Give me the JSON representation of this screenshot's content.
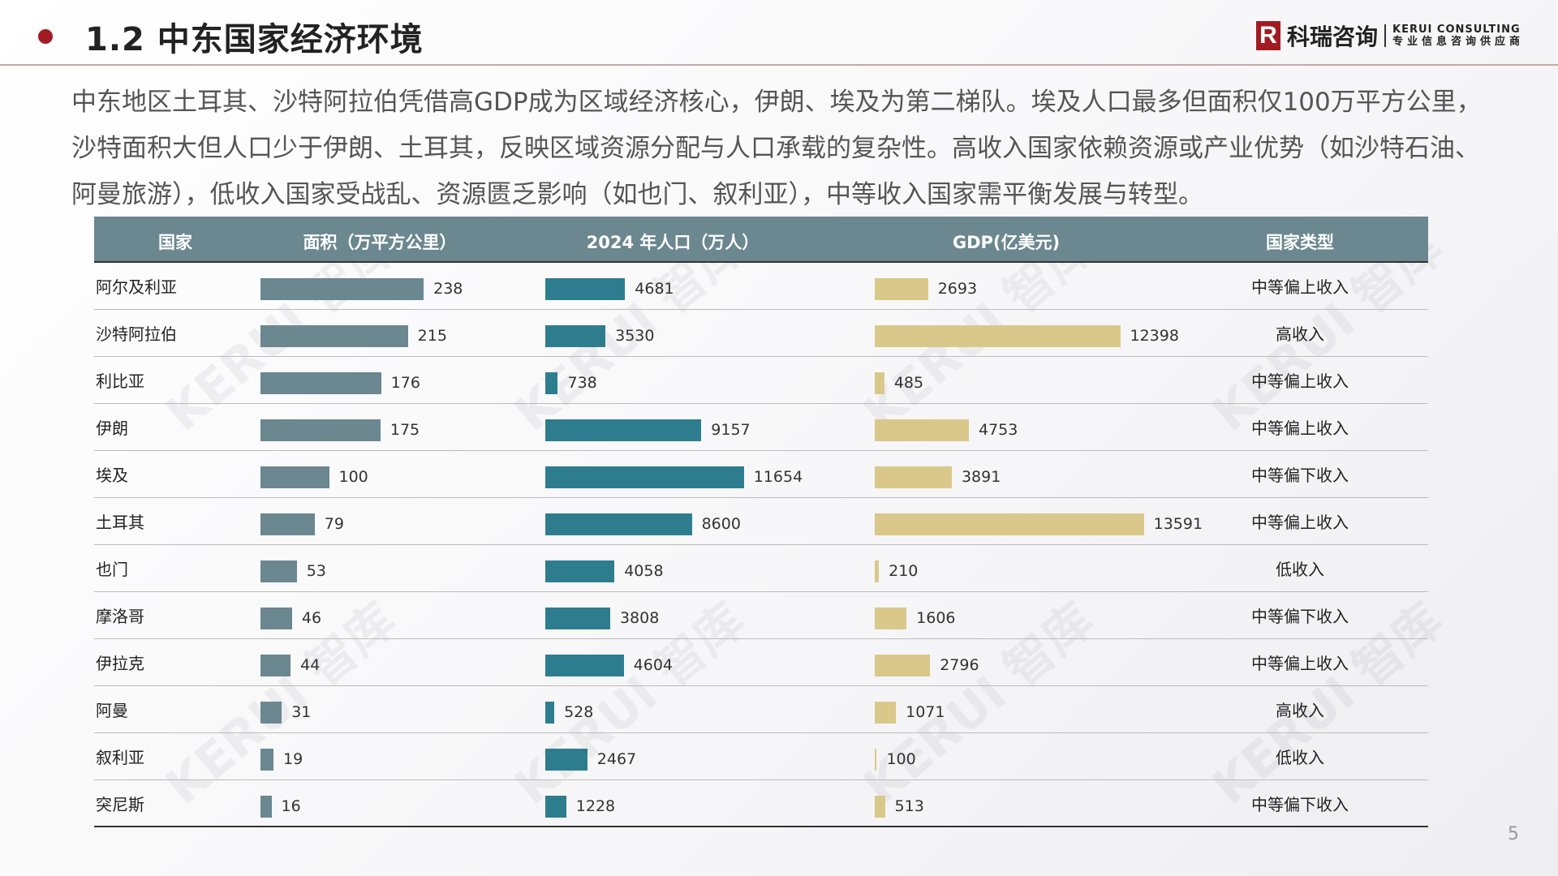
{
  "header": {
    "title": "1.2 中东国家经济环境"
  },
  "logo": {
    "mark": "R",
    "cn": "科瑞咨询",
    "en": "KERUI CONSULTING",
    "tagline": "专业信息咨询供应商"
  },
  "paragraph": "中东地区土耳其、沙特阿拉伯凭借高GDP成为区域经济核心，伊朗、埃及为第二梯队。埃及人口最多但面积仅100万平方公里，沙特面积大但人口少于伊朗、土耳其，反映区域资源分配与人口承载的复杂性。高收入国家依赖资源或产业优势（如沙特石油、阿曼旅游），低收入国家受战乱、资源匮乏影响（如也门、叙利亚），中等收入国家需平衡发展与转型。",
  "watermark": "KERUI 智库",
  "colors": {
    "area": "#6b8790",
    "population": "#2e7d8f",
    "gdp": "#d9c88a",
    "header": "#6b8790",
    "accent": "#a01c22"
  },
  "table": {
    "headers": [
      "国家",
      "面积（万平方公里）",
      "2024 年人口（万人）",
      "GDP(亿美元)",
      "国家类型"
    ],
    "rows": [
      {
        "country": "阿尔及利亚",
        "area": 238,
        "population": 4681,
        "gdp": 2693,
        "type": "中等偏上收入"
      },
      {
        "country": "沙特阿拉伯",
        "area": 215,
        "population": 3530,
        "gdp": 12398,
        "type": "高收入"
      },
      {
        "country": "利比亚",
        "area": 176,
        "population": 738,
        "gdp": 485,
        "type": "中等偏上收入"
      },
      {
        "country": "伊朗",
        "area": 175,
        "population": 9157,
        "gdp": 4753,
        "type": "中等偏上收入"
      },
      {
        "country": "埃及",
        "area": 100,
        "population": 11654,
        "gdp": 3891,
        "type": "中等偏下收入"
      },
      {
        "country": "土耳其",
        "area": 79,
        "population": 8600,
        "gdp": 13591,
        "type": "中等偏上收入"
      },
      {
        "country": "也门",
        "area": 53,
        "population": 4058,
        "gdp": 210,
        "type": "低收入"
      },
      {
        "country": "摩洛哥",
        "area": 46,
        "population": 3808,
        "gdp": 1606,
        "type": "中等偏下收入"
      },
      {
        "country": "伊拉克",
        "area": 44,
        "population": 4604,
        "gdp": 2796,
        "type": "中等偏上收入"
      },
      {
        "country": "阿曼",
        "area": 31,
        "population": 528,
        "gdp": 1071,
        "type": "高收入"
      },
      {
        "country": "叙利亚",
        "area": 19,
        "population": 2467,
        "gdp": 100,
        "type": "低收入"
      },
      {
        "country": "突尼斯",
        "area": 16,
        "population": 1228,
        "gdp": 513,
        "type": "中等偏下收入"
      }
    ]
  },
  "page_number": "5"
}
